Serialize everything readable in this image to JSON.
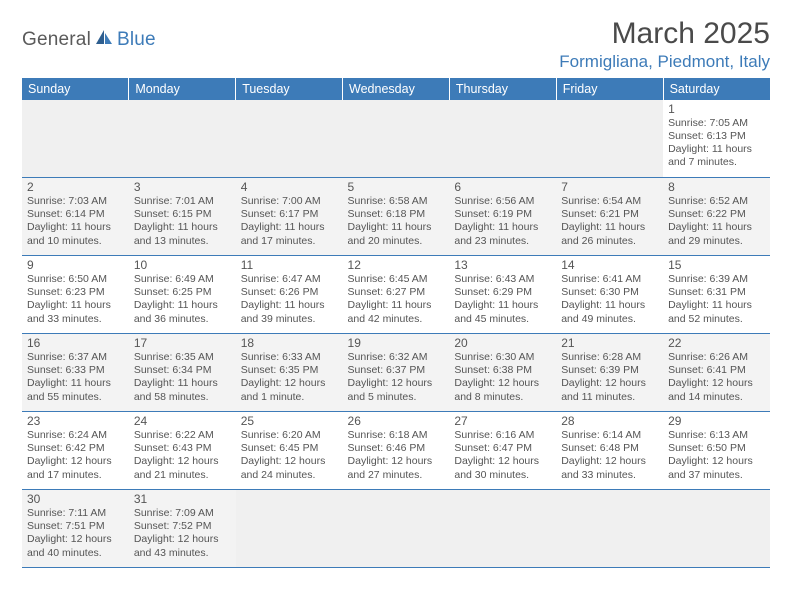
{
  "logo": {
    "textA": "General",
    "textB": "Blue"
  },
  "title": "March 2025",
  "location": "Formigliana, Piedmont, Italy",
  "colors": {
    "header_bg": "#3d7bb8",
    "header_text": "#ffffff",
    "rule": "#3d7bb8",
    "body_text": "#555555",
    "alt_row": "#f3f3f3",
    "empty": "#f0f0f0"
  },
  "day_headers": [
    "Sunday",
    "Monday",
    "Tuesday",
    "Wednesday",
    "Thursday",
    "Friday",
    "Saturday"
  ],
  "weeks": [
    [
      {
        "empty": true
      },
      {
        "empty": true
      },
      {
        "empty": true
      },
      {
        "empty": true
      },
      {
        "empty": true
      },
      {
        "empty": true
      },
      {
        "n": "1",
        "sunrise": "Sunrise: 7:05 AM",
        "sunset": "Sunset: 6:13 PM",
        "day": "Daylight: 11 hours and 7 minutes."
      }
    ],
    [
      {
        "n": "2",
        "sunrise": "Sunrise: 7:03 AM",
        "sunset": "Sunset: 6:14 PM",
        "day": "Daylight: 11 hours and 10 minutes."
      },
      {
        "n": "3",
        "sunrise": "Sunrise: 7:01 AM",
        "sunset": "Sunset: 6:15 PM",
        "day": "Daylight: 11 hours and 13 minutes."
      },
      {
        "n": "4",
        "sunrise": "Sunrise: 7:00 AM",
        "sunset": "Sunset: 6:17 PM",
        "day": "Daylight: 11 hours and 17 minutes."
      },
      {
        "n": "5",
        "sunrise": "Sunrise: 6:58 AM",
        "sunset": "Sunset: 6:18 PM",
        "day": "Daylight: 11 hours and 20 minutes."
      },
      {
        "n": "6",
        "sunrise": "Sunrise: 6:56 AM",
        "sunset": "Sunset: 6:19 PM",
        "day": "Daylight: 11 hours and 23 minutes."
      },
      {
        "n": "7",
        "sunrise": "Sunrise: 6:54 AM",
        "sunset": "Sunset: 6:21 PM",
        "day": "Daylight: 11 hours and 26 minutes."
      },
      {
        "n": "8",
        "sunrise": "Sunrise: 6:52 AM",
        "sunset": "Sunset: 6:22 PM",
        "day": "Daylight: 11 hours and 29 minutes."
      }
    ],
    [
      {
        "n": "9",
        "sunrise": "Sunrise: 6:50 AM",
        "sunset": "Sunset: 6:23 PM",
        "day": "Daylight: 11 hours and 33 minutes."
      },
      {
        "n": "10",
        "sunrise": "Sunrise: 6:49 AM",
        "sunset": "Sunset: 6:25 PM",
        "day": "Daylight: 11 hours and 36 minutes."
      },
      {
        "n": "11",
        "sunrise": "Sunrise: 6:47 AM",
        "sunset": "Sunset: 6:26 PM",
        "day": "Daylight: 11 hours and 39 minutes."
      },
      {
        "n": "12",
        "sunrise": "Sunrise: 6:45 AM",
        "sunset": "Sunset: 6:27 PM",
        "day": "Daylight: 11 hours and 42 minutes."
      },
      {
        "n": "13",
        "sunrise": "Sunrise: 6:43 AM",
        "sunset": "Sunset: 6:29 PM",
        "day": "Daylight: 11 hours and 45 minutes."
      },
      {
        "n": "14",
        "sunrise": "Sunrise: 6:41 AM",
        "sunset": "Sunset: 6:30 PM",
        "day": "Daylight: 11 hours and 49 minutes."
      },
      {
        "n": "15",
        "sunrise": "Sunrise: 6:39 AM",
        "sunset": "Sunset: 6:31 PM",
        "day": "Daylight: 11 hours and 52 minutes."
      }
    ],
    [
      {
        "n": "16",
        "sunrise": "Sunrise: 6:37 AM",
        "sunset": "Sunset: 6:33 PM",
        "day": "Daylight: 11 hours and 55 minutes."
      },
      {
        "n": "17",
        "sunrise": "Sunrise: 6:35 AM",
        "sunset": "Sunset: 6:34 PM",
        "day": "Daylight: 11 hours and 58 minutes."
      },
      {
        "n": "18",
        "sunrise": "Sunrise: 6:33 AM",
        "sunset": "Sunset: 6:35 PM",
        "day": "Daylight: 12 hours and 1 minute."
      },
      {
        "n": "19",
        "sunrise": "Sunrise: 6:32 AM",
        "sunset": "Sunset: 6:37 PM",
        "day": "Daylight: 12 hours and 5 minutes."
      },
      {
        "n": "20",
        "sunrise": "Sunrise: 6:30 AM",
        "sunset": "Sunset: 6:38 PM",
        "day": "Daylight: 12 hours and 8 minutes."
      },
      {
        "n": "21",
        "sunrise": "Sunrise: 6:28 AM",
        "sunset": "Sunset: 6:39 PM",
        "day": "Daylight: 12 hours and 11 minutes."
      },
      {
        "n": "22",
        "sunrise": "Sunrise: 6:26 AM",
        "sunset": "Sunset: 6:41 PM",
        "day": "Daylight: 12 hours and 14 minutes."
      }
    ],
    [
      {
        "n": "23",
        "sunrise": "Sunrise: 6:24 AM",
        "sunset": "Sunset: 6:42 PM",
        "day": "Daylight: 12 hours and 17 minutes."
      },
      {
        "n": "24",
        "sunrise": "Sunrise: 6:22 AM",
        "sunset": "Sunset: 6:43 PM",
        "day": "Daylight: 12 hours and 21 minutes."
      },
      {
        "n": "25",
        "sunrise": "Sunrise: 6:20 AM",
        "sunset": "Sunset: 6:45 PM",
        "day": "Daylight: 12 hours and 24 minutes."
      },
      {
        "n": "26",
        "sunrise": "Sunrise: 6:18 AM",
        "sunset": "Sunset: 6:46 PM",
        "day": "Daylight: 12 hours and 27 minutes."
      },
      {
        "n": "27",
        "sunrise": "Sunrise: 6:16 AM",
        "sunset": "Sunset: 6:47 PM",
        "day": "Daylight: 12 hours and 30 minutes."
      },
      {
        "n": "28",
        "sunrise": "Sunrise: 6:14 AM",
        "sunset": "Sunset: 6:48 PM",
        "day": "Daylight: 12 hours and 33 minutes."
      },
      {
        "n": "29",
        "sunrise": "Sunrise: 6:13 AM",
        "sunset": "Sunset: 6:50 PM",
        "day": "Daylight: 12 hours and 37 minutes."
      }
    ],
    [
      {
        "n": "30",
        "sunrise": "Sunrise: 7:11 AM",
        "sunset": "Sunset: 7:51 PM",
        "day": "Daylight: 12 hours and 40 minutes."
      },
      {
        "n": "31",
        "sunrise": "Sunrise: 7:09 AM",
        "sunset": "Sunset: 7:52 PM",
        "day": "Daylight: 12 hours and 43 minutes."
      },
      {
        "empty": true
      },
      {
        "empty": true
      },
      {
        "empty": true
      },
      {
        "empty": true
      },
      {
        "empty": true
      }
    ]
  ]
}
